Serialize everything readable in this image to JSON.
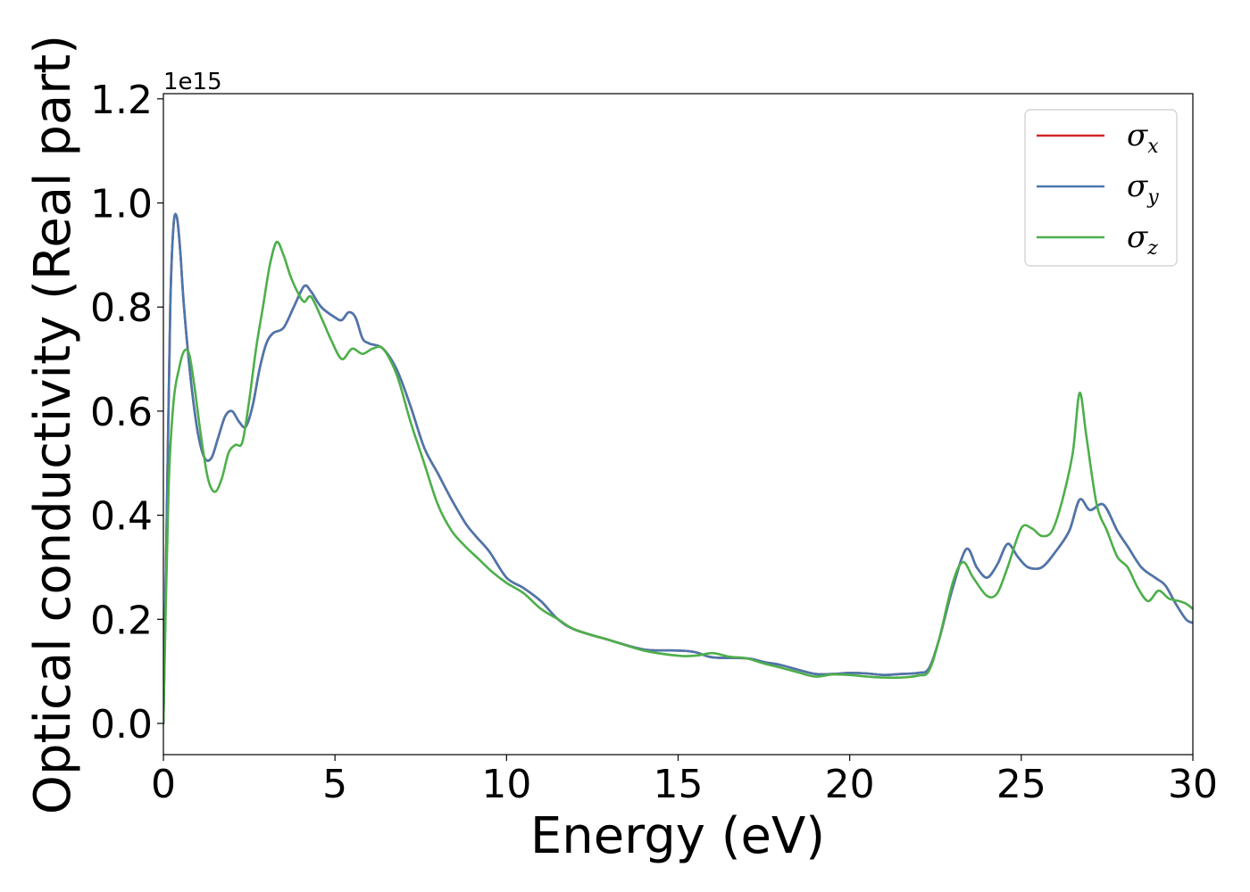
{
  "chart_data": {
    "type": "line",
    "xlabel": "Energy (eV)",
    "ylabel": "Optical conductivity (Real part)",
    "y_offset_label": "1e15",
    "xlim": [
      0,
      30
    ],
    "ylim": [
      -0.06,
      1.21
    ],
    "x_ticks": [
      0,
      5,
      10,
      15,
      20,
      25,
      30
    ],
    "x_tick_labels": [
      "0",
      "5",
      "10",
      "15",
      "20",
      "25",
      "30"
    ],
    "y_ticks": [
      0.0,
      0.2,
      0.4,
      0.6,
      0.8,
      1.0,
      1.2
    ],
    "y_tick_labels": [
      "0.0",
      "0.2",
      "0.4",
      "0.6",
      "0.8",
      "1.0",
      "1.2"
    ],
    "grid": false,
    "legend_position": "top-right",
    "series": [
      {
        "name": "σx",
        "symbol": "σ",
        "subscript": "x",
        "color": "#d62728",
        "x": [
          0,
          0.1,
          0.2,
          0.3,
          0.4,
          0.5,
          0.6,
          0.8,
          1.0,
          1.2,
          1.4,
          1.6,
          1.8,
          2.0,
          2.2,
          2.4,
          2.6,
          2.8,
          3.0,
          3.2,
          3.5,
          3.8,
          4.1,
          4.3,
          4.6,
          5.0,
          5.2,
          5.4,
          5.6,
          5.8,
          6.0,
          6.4,
          6.8,
          7.2,
          7.6,
          8.0,
          8.4,
          8.8,
          9.1,
          9.5,
          10.0,
          10.5,
          11.0,
          11.5,
          12.0,
          13.0,
          14.0,
          15.0,
          15.5,
          16.0,
          17.0,
          17.5,
          18.0,
          18.5,
          19.0,
          19.5,
          20.0,
          20.5,
          21.0,
          21.5,
          22.0,
          22.3,
          22.6,
          23.0,
          23.4,
          23.7,
          24.0,
          24.3,
          24.6,
          24.9,
          25.2,
          25.6,
          26.0,
          26.4,
          26.7,
          27.0,
          27.4,
          27.8,
          28.1,
          28.5,
          28.9,
          29.2,
          29.5,
          29.8,
          30.0
        ],
        "y": [
          0,
          0.4,
          0.8,
          0.96,
          0.97,
          0.9,
          0.8,
          0.66,
          0.56,
          0.51,
          0.51,
          0.55,
          0.59,
          0.6,
          0.58,
          0.57,
          0.61,
          0.68,
          0.73,
          0.75,
          0.76,
          0.8,
          0.84,
          0.83,
          0.8,
          0.78,
          0.775,
          0.79,
          0.78,
          0.74,
          0.73,
          0.72,
          0.68,
          0.61,
          0.53,
          0.48,
          0.43,
          0.385,
          0.36,
          0.33,
          0.28,
          0.26,
          0.235,
          0.2,
          0.18,
          0.16,
          0.142,
          0.14,
          0.137,
          0.127,
          0.125,
          0.118,
          0.112,
          0.103,
          0.095,
          0.095,
          0.097,
          0.096,
          0.093,
          0.095,
          0.097,
          0.105,
          0.16,
          0.26,
          0.335,
          0.3,
          0.28,
          0.305,
          0.345,
          0.32,
          0.3,
          0.3,
          0.33,
          0.37,
          0.43,
          0.41,
          0.42,
          0.37,
          0.34,
          0.3,
          0.28,
          0.265,
          0.23,
          0.2,
          0.193
        ]
      },
      {
        "name": "σy",
        "symbol": "σ",
        "subscript": "y",
        "color": "#4a77ad",
        "x": [
          0,
          0.1,
          0.2,
          0.3,
          0.4,
          0.5,
          0.6,
          0.8,
          1.0,
          1.2,
          1.4,
          1.6,
          1.8,
          2.0,
          2.2,
          2.4,
          2.6,
          2.8,
          3.0,
          3.2,
          3.5,
          3.8,
          4.1,
          4.3,
          4.6,
          5.0,
          5.2,
          5.4,
          5.6,
          5.8,
          6.0,
          6.4,
          6.8,
          7.2,
          7.6,
          8.0,
          8.4,
          8.8,
          9.1,
          9.5,
          10.0,
          10.5,
          11.0,
          11.5,
          12.0,
          13.0,
          14.0,
          15.0,
          15.5,
          16.0,
          17.0,
          17.5,
          18.0,
          18.5,
          19.0,
          19.5,
          20.0,
          20.5,
          21.0,
          21.5,
          22.0,
          22.3,
          22.6,
          23.0,
          23.4,
          23.7,
          24.0,
          24.3,
          24.6,
          24.9,
          25.2,
          25.6,
          26.0,
          26.4,
          26.7,
          27.0,
          27.4,
          27.8,
          28.1,
          28.5,
          28.9,
          29.2,
          29.5,
          29.8,
          30.0
        ],
        "y": [
          0,
          0.4,
          0.8,
          0.96,
          0.97,
          0.9,
          0.8,
          0.66,
          0.56,
          0.51,
          0.51,
          0.55,
          0.59,
          0.6,
          0.58,
          0.57,
          0.61,
          0.68,
          0.73,
          0.75,
          0.76,
          0.8,
          0.84,
          0.83,
          0.8,
          0.78,
          0.775,
          0.79,
          0.78,
          0.74,
          0.73,
          0.72,
          0.68,
          0.61,
          0.53,
          0.48,
          0.43,
          0.385,
          0.36,
          0.33,
          0.28,
          0.26,
          0.235,
          0.2,
          0.18,
          0.16,
          0.142,
          0.14,
          0.137,
          0.127,
          0.125,
          0.118,
          0.112,
          0.103,
          0.095,
          0.095,
          0.097,
          0.096,
          0.093,
          0.095,
          0.097,
          0.105,
          0.16,
          0.26,
          0.335,
          0.3,
          0.28,
          0.305,
          0.345,
          0.32,
          0.3,
          0.3,
          0.33,
          0.37,
          0.43,
          0.41,
          0.42,
          0.37,
          0.34,
          0.3,
          0.28,
          0.265,
          0.23,
          0.2,
          0.193
        ]
      },
      {
        "name": "σz",
        "symbol": "σ",
        "subscript": "z",
        "color": "#4daf4a",
        "x": [
          0,
          0.15,
          0.3,
          0.45,
          0.6,
          0.75,
          0.9,
          1.1,
          1.3,
          1.5,
          1.7,
          1.9,
          2.1,
          2.3,
          2.5,
          2.7,
          2.9,
          3.1,
          3.3,
          3.5,
          3.7,
          3.9,
          4.1,
          4.3,
          4.6,
          4.9,
          5.2,
          5.5,
          5.8,
          6.1,
          6.4,
          6.8,
          7.2,
          7.6,
          8.0,
          8.4,
          8.8,
          9.2,
          9.6,
          10.0,
          10.5,
          11.0,
          11.5,
          12.0,
          13.0,
          14.0,
          15.0,
          15.5,
          16.0,
          16.5,
          17.0,
          17.5,
          18.0,
          18.5,
          19.0,
          19.5,
          20.0,
          20.5,
          21.0,
          21.5,
          22.0,
          22.3,
          22.6,
          23.0,
          23.3,
          23.6,
          24.0,
          24.3,
          24.6,
          25.0,
          25.3,
          25.6,
          25.9,
          26.2,
          26.5,
          26.7,
          26.9,
          27.2,
          27.5,
          27.8,
          28.1,
          28.4,
          28.7,
          29.0,
          29.3,
          29.6,
          29.8,
          30.0
        ],
        "y": [
          0,
          0.45,
          0.62,
          0.68,
          0.715,
          0.71,
          0.65,
          0.55,
          0.47,
          0.445,
          0.47,
          0.52,
          0.535,
          0.54,
          0.62,
          0.72,
          0.8,
          0.88,
          0.925,
          0.9,
          0.86,
          0.83,
          0.81,
          0.82,
          0.78,
          0.735,
          0.7,
          0.72,
          0.71,
          0.72,
          0.72,
          0.67,
          0.58,
          0.5,
          0.42,
          0.37,
          0.34,
          0.315,
          0.29,
          0.27,
          0.25,
          0.22,
          0.2,
          0.18,
          0.16,
          0.14,
          0.13,
          0.13,
          0.135,
          0.128,
          0.125,
          0.115,
          0.107,
          0.098,
          0.09,
          0.094,
          0.093,
          0.09,
          0.088,
          0.088,
          0.092,
          0.1,
          0.16,
          0.27,
          0.31,
          0.28,
          0.245,
          0.25,
          0.3,
          0.375,
          0.375,
          0.36,
          0.37,
          0.43,
          0.52,
          0.635,
          0.55,
          0.42,
          0.37,
          0.32,
          0.3,
          0.26,
          0.235,
          0.255,
          0.24,
          0.235,
          0.23,
          0.22
        ]
      }
    ]
  }
}
